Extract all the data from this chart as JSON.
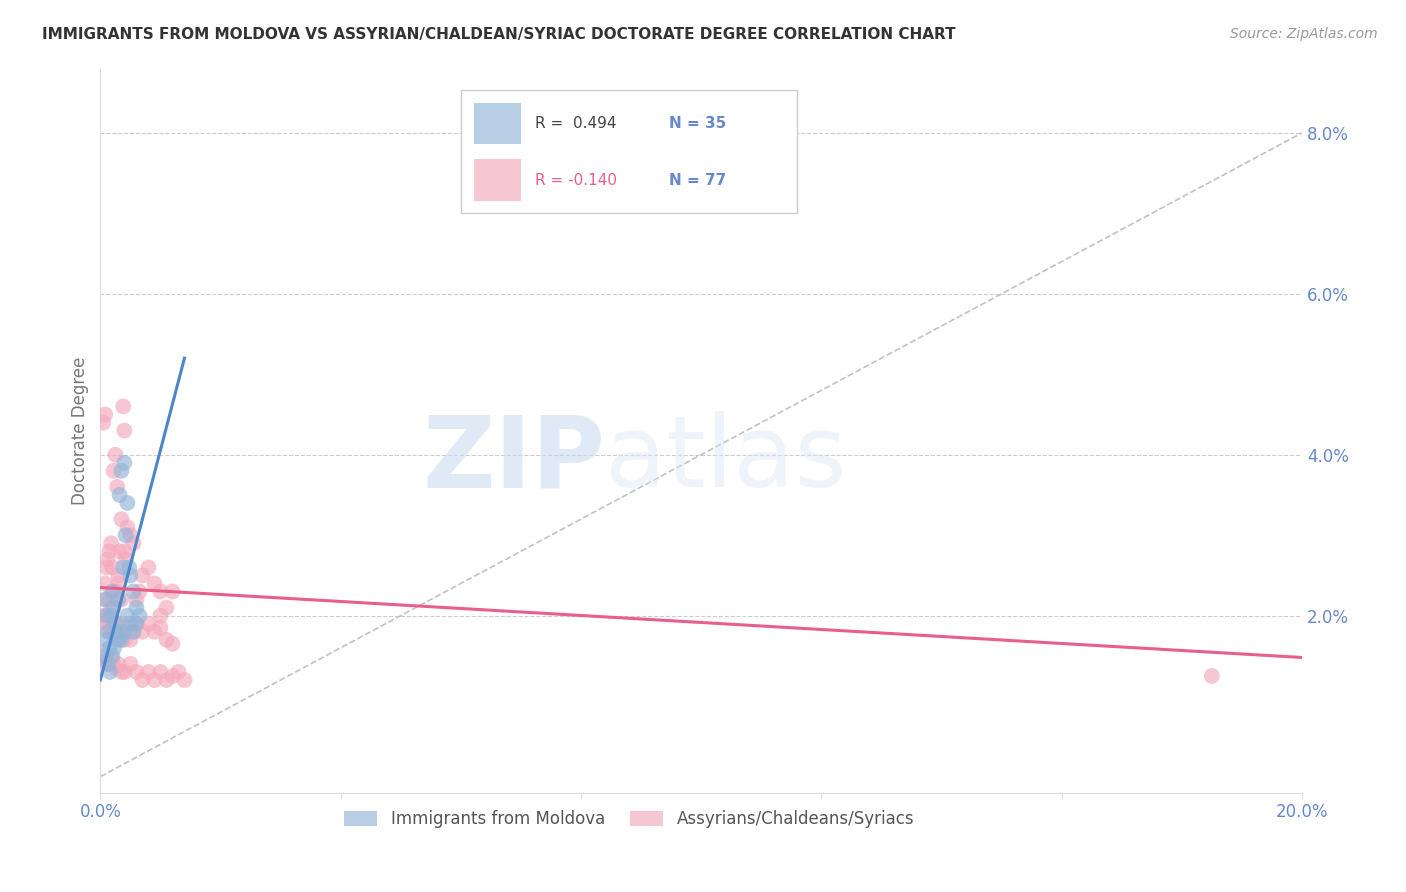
{
  "title": "IMMIGRANTS FROM MOLDOVA VS ASSYRIAN/CHALDEAN/SYRIAC DOCTORATE DEGREE CORRELATION CHART",
  "source": "Source: ZipAtlas.com",
  "ylabel": "Doctorate Degree",
  "xlim": [
    0.0,
    0.2
  ],
  "ylim": [
    -0.002,
    0.088
  ],
  "blue_color": "#92b4d8",
  "pink_color": "#f4a8bc",
  "blue_line_color": "#4a86c8",
  "pink_line_color": "#e8608a",
  "blue_label": "Immigrants from Moldova",
  "pink_label": "Assyrians/Chaldeans/Syriacs",
  "blue_R": "0.494",
  "blue_N": "35",
  "pink_R": "-0.140",
  "pink_N": "77",
  "watermark_zip": "ZIP",
  "watermark_atlas": "atlas",
  "background_color": "#ffffff",
  "grid_color": "#cccccc",
  "right_tick_color": "#6688cc",
  "title_color": "#333333",
  "source_color": "#999999",
  "legend_border_color": "#cccccc",
  "blue_scatter_x": [
    0.0008,
    0.001,
    0.0012,
    0.0015,
    0.0018,
    0.002,
    0.0022,
    0.0025,
    0.0028,
    0.003,
    0.0032,
    0.0035,
    0.0038,
    0.004,
    0.0042,
    0.0045,
    0.0048,
    0.005,
    0.0055,
    0.006,
    0.0008,
    0.001,
    0.0013,
    0.0016,
    0.002,
    0.0023,
    0.0027,
    0.003,
    0.0035,
    0.004,
    0.0045,
    0.005,
    0.0055,
    0.006,
    0.0065
  ],
  "blue_scatter_y": [
    0.022,
    0.02,
    0.018,
    0.016,
    0.02,
    0.023,
    0.021,
    0.019,
    0.0175,
    0.022,
    0.035,
    0.038,
    0.026,
    0.039,
    0.03,
    0.034,
    0.026,
    0.025,
    0.023,
    0.021,
    0.015,
    0.017,
    0.014,
    0.013,
    0.015,
    0.016,
    0.018,
    0.017,
    0.017,
    0.018,
    0.02,
    0.019,
    0.018,
    0.019,
    0.02
  ],
  "pink_scatter_x": [
    0.0005,
    0.0008,
    0.001,
    0.0012,
    0.0015,
    0.0018,
    0.002,
    0.0022,
    0.0025,
    0.0028,
    0.003,
    0.0032,
    0.0035,
    0.0038,
    0.004,
    0.0042,
    0.0045,
    0.005,
    0.0055,
    0.006,
    0.0065,
    0.007,
    0.008,
    0.009,
    0.01,
    0.011,
    0.012,
    0.0008,
    0.001,
    0.0013,
    0.0016,
    0.002,
    0.0023,
    0.0027,
    0.003,
    0.0035,
    0.004,
    0.0005,
    0.0008,
    0.0012,
    0.0015,
    0.002,
    0.0025,
    0.003,
    0.0035,
    0.004,
    0.0045,
    0.005,
    0.0055,
    0.006,
    0.007,
    0.008,
    0.009,
    0.01,
    0.011,
    0.0005,
    0.0008,
    0.0012,
    0.0015,
    0.002,
    0.0025,
    0.003,
    0.0035,
    0.004,
    0.005,
    0.006,
    0.007,
    0.008,
    0.009,
    0.01,
    0.011,
    0.012,
    0.013,
    0.014,
    0.01,
    0.012,
    0.185
  ],
  "pink_scatter_y": [
    0.044,
    0.045,
    0.026,
    0.027,
    0.028,
    0.029,
    0.026,
    0.038,
    0.04,
    0.036,
    0.025,
    0.028,
    0.032,
    0.046,
    0.043,
    0.027,
    0.031,
    0.03,
    0.029,
    0.022,
    0.023,
    0.025,
    0.026,
    0.024,
    0.023,
    0.021,
    0.023,
    0.024,
    0.022,
    0.02,
    0.022,
    0.021,
    0.023,
    0.023,
    0.024,
    0.022,
    0.028,
    0.02,
    0.019,
    0.019,
    0.018,
    0.018,
    0.019,
    0.018,
    0.019,
    0.017,
    0.018,
    0.017,
    0.018,
    0.019,
    0.018,
    0.019,
    0.018,
    0.02,
    0.017,
    0.0155,
    0.014,
    0.0145,
    0.014,
    0.0145,
    0.0135,
    0.014,
    0.013,
    0.013,
    0.014,
    0.013,
    0.012,
    0.013,
    0.012,
    0.013,
    0.012,
    0.0125,
    0.013,
    0.012,
    0.0185,
    0.0165,
    0.0125
  ],
  "blue_trendline": [
    0.0,
    0.014,
    0.012,
    0.052
  ],
  "pink_trendline": [
    0.0,
    0.2,
    0.0235,
    0.0148
  ],
  "diag_line": [
    0.0,
    0.2,
    0.0,
    0.08
  ]
}
